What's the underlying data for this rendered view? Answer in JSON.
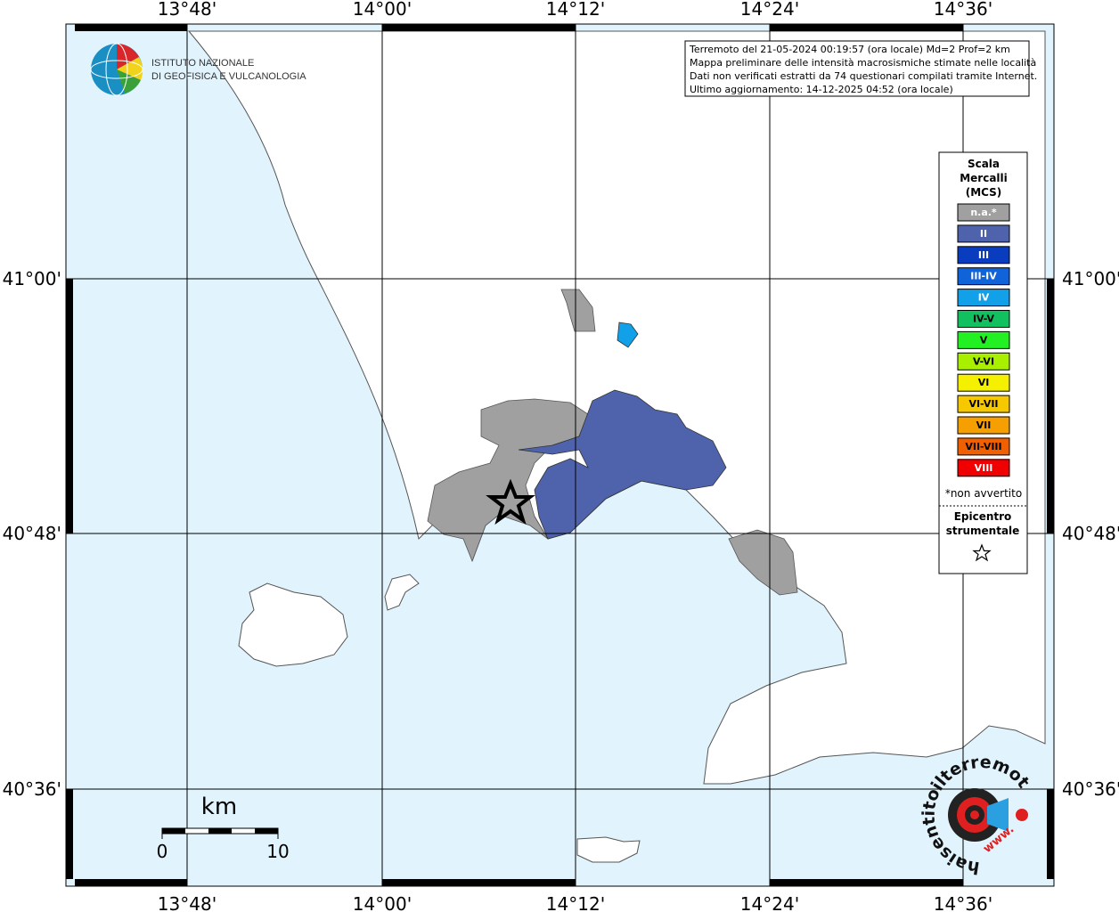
{
  "longitudes": [
    "13°48'",
    "14°00'",
    "14°12'",
    "14°24'",
    "14°36'"
  ],
  "latitudes": [
    "41°00'",
    "40°48'",
    "40°36'"
  ],
  "info": [
    "Terremoto del 21-05-2024 00:19:57 (ora locale) Md=2 Prof=2 km",
    "Mappa preliminare delle intensità macrosismiche stimate nelle località",
    "Dati non verificati estratti da 74 questionari compilati tramite Internet.",
    "Ultimo aggiornamento: 14-12-2025 04:52 (ora locale)"
  ],
  "logo": [
    "ISTITUTO NAZIONALE",
    "DI GEOFISICA E VULCANOLOGIA"
  ],
  "legend": {
    "title": [
      "Scala",
      "Mercalli",
      "(MCS)"
    ],
    "items": [
      {
        "label": "n.a.*",
        "color": "#a0a0a0",
        "text": "#ffffff"
      },
      {
        "label": "II",
        "color": "#4f63ad",
        "text": "#ffffff"
      },
      {
        "label": "III",
        "color": "#0a3cc0",
        "text": "#ffffff"
      },
      {
        "label": "III-IV",
        "color": "#1063d8",
        "text": "#ffffff"
      },
      {
        "label": "IV",
        "color": "#12a0e8",
        "text": "#ffffff"
      },
      {
        "label": "IV-V",
        "color": "#12c060",
        "text": "#000000"
      },
      {
        "label": "V",
        "color": "#22f022",
        "text": "#000000"
      },
      {
        "label": "V-VI",
        "color": "#a8f000",
        "text": "#000000"
      },
      {
        "label": "VI",
        "color": "#f5f000",
        "text": "#000000"
      },
      {
        "label": "VI-VII",
        "color": "#f5c800",
        "text": "#000000"
      },
      {
        "label": "VII",
        "color": "#f5a000",
        "text": "#000000"
      },
      {
        "label": "VII-VIII",
        "color": "#f06000",
        "text": "#000000"
      },
      {
        "label": "VIII",
        "color": "#f00000",
        "text": "#ffffff"
      }
    ],
    "note": "*non avvertito",
    "epicenter": [
      "Epicentro",
      "strumentale"
    ]
  },
  "scale": {
    "unit": "km",
    "start": "0",
    "end": "10"
  },
  "site_logo": {
    "name": "haisentitoilterremoto.it",
    "prefix": "www."
  }
}
